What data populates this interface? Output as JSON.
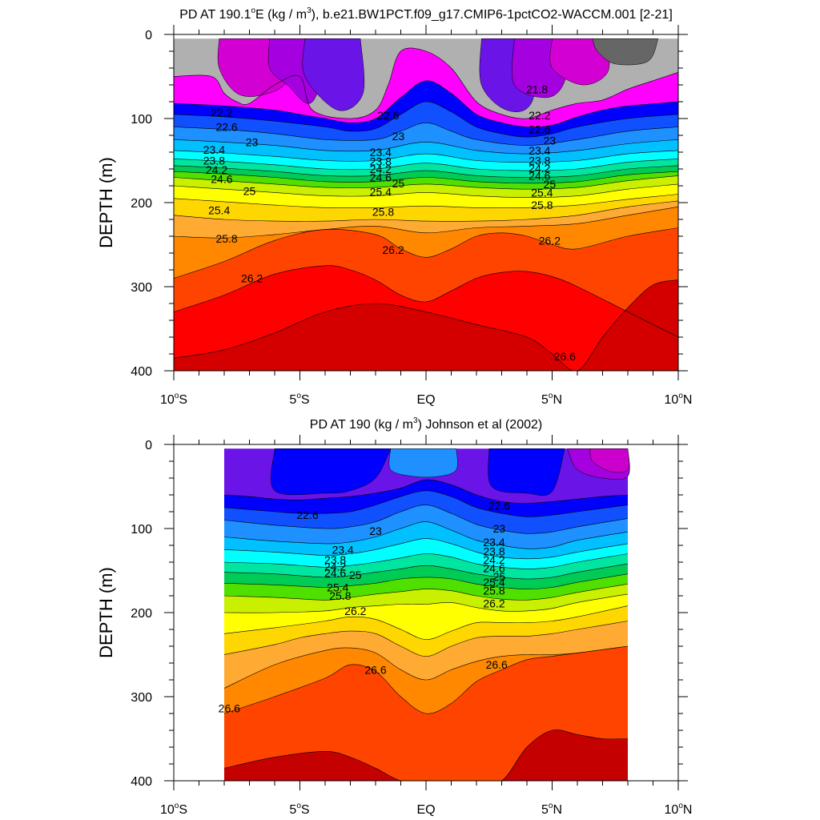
{
  "figure": {
    "panels": [
      {
        "title_prefix": "PD AT 190.1",
        "title_degree": "o",
        "title_units": "E (kg / m",
        "title_exp": "3",
        "title_suffix": "), b.e21.BW1PCT.f09_g17.CMIP6-1pctCO2-WACCM.001 [2-21]"
      },
      {
        "title_prefix": "PD AT 190 (kg / m",
        "title_exp": "3",
        "title_suffix": ") Johnson et al (2002)"
      }
    ],
    "ylabel": "DEPTH (m)",
    "yticks": [
      "0",
      "100",
      "200",
      "300",
      "400"
    ],
    "xticks": [
      {
        "label": "10",
        "deg": "o",
        "hemi": "S"
      },
      {
        "label": "5",
        "deg": "o",
        "hemi": "S"
      },
      {
        "label": "EQ",
        "deg": "",
        "hemi": ""
      },
      {
        "label": "5",
        "deg": "o",
        "hemi": "N"
      },
      {
        "label": "10",
        "deg": "o",
        "hemi": "N"
      }
    ]
  },
  "chart_data": [
    {
      "type": "heatmap",
      "subtype": "filled-contour depth-latitude section",
      "title": "PD AT 190.1°E (kg / m3), b.e21.BW1PCT.f09_g17.CMIP6-1pctCO2-WACCM.001 [2-21]",
      "xlabel": "",
      "ylabel": "DEPTH (m)",
      "xlim": [
        -10,
        10
      ],
      "ylim": [
        0,
        400
      ],
      "y_reversed": true,
      "data_xlim": [
        -10,
        10
      ],
      "data_ylim": [
        5,
        400
      ],
      "contour_interval": 0.2,
      "colors": [
        "#b0b0b0",
        "#ff00ff",
        "#d300d3",
        "#a400e0",
        "#6a14e8",
        "#0000ff",
        "#1050ff",
        "#1e90ff",
        "#00c0ff",
        "#00ffff",
        "#00e5a0",
        "#00cc55",
        "#50e000",
        "#c8f000",
        "#ffff00",
        "#ffd700",
        "#ffaa33",
        "#ff8800",
        "#ff4400",
        "#ff0000",
        "#d40000"
      ],
      "labeled_levels": [
        {
          "value": "21.8",
          "lat": 4.4,
          "depth": 65
        },
        {
          "value": "22.2",
          "lat": -8.1,
          "depth": 93
        },
        {
          "value": "22.6",
          "lat": -7.9,
          "depth": 110
        },
        {
          "value": "23",
          "lat": -6.9,
          "depth": 128
        },
        {
          "value": "23.4",
          "lat": -8.4,
          "depth": 137
        },
        {
          "value": "23.8",
          "lat": -8.4,
          "depth": 150
        },
        {
          "value": "24.2",
          "lat": -8.3,
          "depth": 161
        },
        {
          "value": "24.6",
          "lat": -8.1,
          "depth": 172
        },
        {
          "value": "25",
          "lat": -7.0,
          "depth": 186
        },
        {
          "value": "25.4",
          "lat": -8.2,
          "depth": 209
        },
        {
          "value": "25.8",
          "lat": -7.9,
          "depth": 243
        },
        {
          "value": "26.2",
          "lat": -6.9,
          "depth": 290
        },
        {
          "value": "22.6",
          "lat": -1.5,
          "depth": 96
        },
        {
          "value": "23",
          "lat": -1.1,
          "depth": 121
        },
        {
          "value": "23.4",
          "lat": -1.8,
          "depth": 140
        },
        {
          "value": "23.8",
          "lat": -1.8,
          "depth": 151
        },
        {
          "value": "24.2",
          "lat": -1.8,
          "depth": 160
        },
        {
          "value": "24.6",
          "lat": -1.8,
          "depth": 170
        },
        {
          "value": "25",
          "lat": -1.1,
          "depth": 177
        },
        {
          "value": "25.4",
          "lat": -1.8,
          "depth": 187
        },
        {
          "value": "25.8",
          "lat": -1.7,
          "depth": 211
        },
        {
          "value": "26.2",
          "lat": -1.3,
          "depth": 256
        },
        {
          "value": "22.2",
          "lat": 4.5,
          "depth": 96
        },
        {
          "value": "22.6",
          "lat": 4.5,
          "depth": 113
        },
        {
          "value": "23",
          "lat": 4.9,
          "depth": 126
        },
        {
          "value": "23.4",
          "lat": 4.5,
          "depth": 138
        },
        {
          "value": "23.8",
          "lat": 4.5,
          "depth": 150
        },
        {
          "value": "24.2",
          "lat": 4.5,
          "depth": 159
        },
        {
          "value": "24.6",
          "lat": 4.5,
          "depth": 168
        },
        {
          "value": "25",
          "lat": 4.9,
          "depth": 178
        },
        {
          "value": "25.4",
          "lat": 4.6,
          "depth": 188
        },
        {
          "value": "25.8",
          "lat": 4.6,
          "depth": 203
        },
        {
          "value": "26.2",
          "lat": 4.9,
          "depth": 245
        },
        {
          "value": "26.6",
          "lat": 5.5,
          "depth": 383
        }
      ]
    },
    {
      "type": "heatmap",
      "subtype": "filled-contour depth-latitude section",
      "title": "PD AT 190 (kg / m3) Johnson et al (2002)",
      "xlabel": "",
      "ylabel": "DEPTH (m)",
      "xlim": [
        -10,
        10
      ],
      "ylim": [
        0,
        400
      ],
      "y_reversed": true,
      "data_xlim": [
        -8,
        8
      ],
      "data_ylim": [
        5,
        400
      ],
      "contour_interval": 0.2,
      "colors": [
        "#cc00cc",
        "#a400e0",
        "#6a14e8",
        "#0000ff",
        "#1050ff",
        "#1e90ff",
        "#00c0ff",
        "#00ffff",
        "#00e5a0",
        "#00cc55",
        "#50e000",
        "#c8f000",
        "#ffff00",
        "#ffd700",
        "#ffaa33",
        "#ff8800",
        "#ff4400",
        "#ff0000",
        "#d40000",
        "#c40000"
      ],
      "labeled_levels": [
        {
          "value": "22.6",
          "lat": -4.7,
          "depth": 84
        },
        {
          "value": "23",
          "lat": -2.0,
          "depth": 103
        },
        {
          "value": "23.4",
          "lat": -3.3,
          "depth": 125
        },
        {
          "value": "23.8",
          "lat": -3.6,
          "depth": 137
        },
        {
          "value": "24.2",
          "lat": -3.6,
          "depth": 145
        },
        {
          "value": "24.6",
          "lat": -3.6,
          "depth": 153
        },
        {
          "value": "25",
          "lat": -2.8,
          "depth": 155
        },
        {
          "value": "25.4",
          "lat": -3.5,
          "depth": 170
        },
        {
          "value": "25.8",
          "lat": -3.4,
          "depth": 180
        },
        {
          "value": "26.2",
          "lat": -2.8,
          "depth": 198
        },
        {
          "value": "26.6",
          "lat": -2.0,
          "depth": 268
        },
        {
          "value": "26.6",
          "lat": -7.8,
          "depth": 314
        },
        {
          "value": "22.6",
          "lat": 2.9,
          "depth": 73
        },
        {
          "value": "23",
          "lat": 2.9,
          "depth": 100
        },
        {
          "value": "23.4",
          "lat": 2.7,
          "depth": 116
        },
        {
          "value": "23.8",
          "lat": 2.7,
          "depth": 127
        },
        {
          "value": "24.2",
          "lat": 2.7,
          "depth": 137
        },
        {
          "value": "24.6",
          "lat": 2.7,
          "depth": 147
        },
        {
          "value": "25",
          "lat": 2.9,
          "depth": 157
        },
        {
          "value": "25.4",
          "lat": 2.7,
          "depth": 164
        },
        {
          "value": "25.8",
          "lat": 2.7,
          "depth": 174
        },
        {
          "value": "26.2",
          "lat": 2.7,
          "depth": 189
        },
        {
          "value": "26.6",
          "lat": 2.8,
          "depth": 262
        }
      ]
    }
  ]
}
